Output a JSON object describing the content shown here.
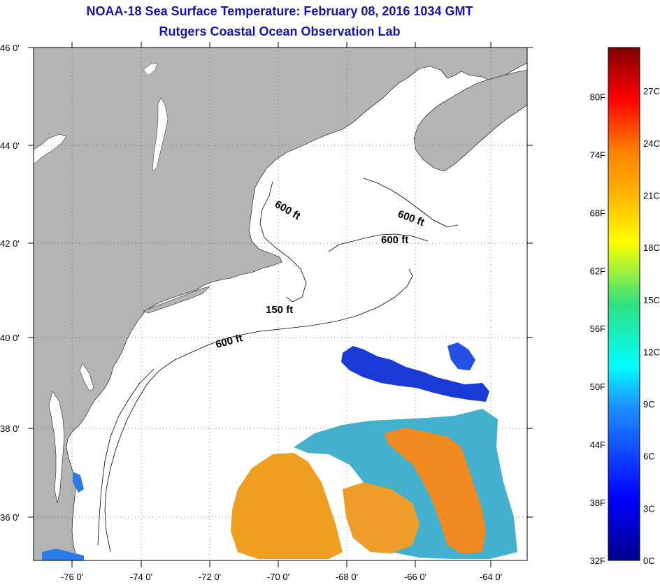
{
  "header": {
    "title": "NOAA-18 Sea Surface Temperature:  February 08, 2016 1034 GMT",
    "subtitle": "Rutgers Coastal Ocean Observation Lab"
  },
  "map": {
    "lat_range": [
      35,
      46.2
    ],
    "lon_range": [
      -77,
      -63.7
    ],
    "lat_ticks": [
      {
        "value": 46,
        "label": "46 0'"
      },
      {
        "value": 44,
        "label": "44 0'"
      },
      {
        "value": 42,
        "label": "42 0'"
      },
      {
        "value": 40,
        "label": "40 0'"
      },
      {
        "value": 38,
        "label": "38 0'"
      },
      {
        "value": 36,
        "label": "36 0'"
      }
    ],
    "lon_ticks": [
      {
        "value": -76,
        "label": "-76 0'"
      },
      {
        "value": -74,
        "label": "-74 0'"
      },
      {
        "value": -72,
        "label": "-72 0'"
      },
      {
        "value": -70,
        "label": "-70 0'"
      },
      {
        "value": -68,
        "label": "-68 0'"
      },
      {
        "value": -66,
        "label": "-66 0'"
      },
      {
        "value": -64,
        "label": "-64 0'"
      }
    ],
    "contour_labels": [
      "600 ft",
      "600 ft",
      "600 ft",
      "150 ft",
      "600 ft"
    ],
    "land_color": "#b4b4b4",
    "grid": "dotted"
  },
  "colorbar": {
    "fahrenheit": [
      {
        "value": 80,
        "label": "80F"
      },
      {
        "value": 74,
        "label": "74F"
      },
      {
        "value": 68,
        "label": "68F"
      },
      {
        "value": 62,
        "label": "62F"
      },
      {
        "value": 56,
        "label": "56F"
      },
      {
        "value": 50,
        "label": "50F"
      },
      {
        "value": 44,
        "label": "44F"
      },
      {
        "value": 38,
        "label": "38F"
      },
      {
        "value": 32,
        "label": "32F"
      }
    ],
    "celsius": [
      {
        "value": 27,
        "label": "27C"
      },
      {
        "value": 24,
        "label": "24C"
      },
      {
        "value": 21,
        "label": "21C"
      },
      {
        "value": 18,
        "label": "18C"
      },
      {
        "value": 15,
        "label": "15C"
      },
      {
        "value": 12,
        "label": "12C"
      },
      {
        "value": 9,
        "label": "9C"
      },
      {
        "value": 6,
        "label": "6C"
      },
      {
        "value": 3,
        "label": "3C"
      },
      {
        "value": 0,
        "label": "0C"
      }
    ],
    "range_c": [
      0,
      29.5
    ]
  }
}
